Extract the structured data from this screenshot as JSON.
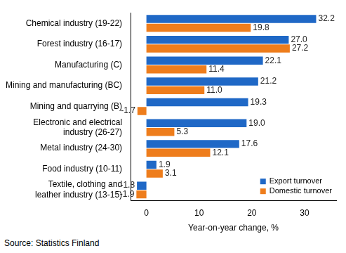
{
  "chart_data": {
    "type": "bar",
    "orientation": "horizontal",
    "categories": [
      "Chemical industry (19-22)",
      "Forest industry (16-17)",
      "Manufacturing (C)",
      "Mining and manufacturing (BC)",
      "Mining and quarrying (B)",
      "Electronic and electrical industry (26-27)",
      "Metal industry (24-30)",
      "Food industry (10-11)",
      "Textile, clothing and leather industry (13-15)"
    ],
    "series": [
      {
        "name": "Export turnover",
        "color": "#1f68c6",
        "values": [
          32.2,
          27.0,
          22.1,
          21.2,
          19.3,
          19.0,
          17.6,
          1.9,
          -1.8
        ],
        "value_labels": [
          "32.2",
          "27.0",
          "22.1",
          "21.2",
          "19.3",
          "19.0",
          "17.6",
          "1.9",
          "-1.8"
        ]
      },
      {
        "name": "Domestic turnover",
        "color": "#ee7d1c",
        "values": [
          19.8,
          27.2,
          11.4,
          11.0,
          -1.7,
          5.3,
          12.1,
          3.1,
          -1.9
        ],
        "value_labels": [
          "19.8",
          "27.2",
          "11.4",
          "11.0",
          "-1.7",
          "5.3",
          "12.1",
          "3.1",
          "-1.9"
        ]
      }
    ],
    "xlabel": "Year-on-year change, %",
    "xlim": [
      -3,
      36
    ],
    "xticks": [
      0,
      10,
      20,
      30
    ],
    "grid": false,
    "data_labels": true,
    "legend": "lower right",
    "caption": "Source: Statistics Finland"
  }
}
